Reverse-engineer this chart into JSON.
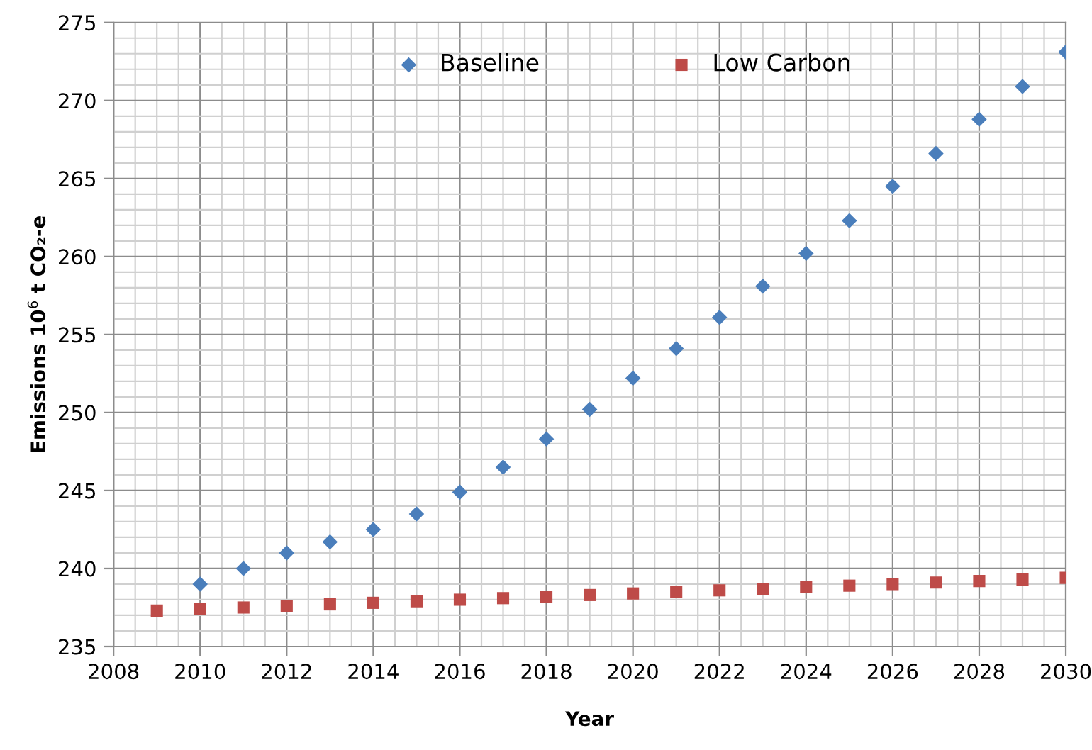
{
  "chart_data": {
    "type": "scatter",
    "xlabel": "Year",
    "ylabel": "Emissions 10$^{6}$ t CO₂-e",
    "xlim": [
      2008,
      2030
    ],
    "xticks": [
      2008,
      2010,
      2012,
      2014,
      2016,
      2018,
      2020,
      2022,
      2024,
      2026,
      2028,
      2030
    ],
    "ylim": [
      235,
      275
    ],
    "yticks": [
      235,
      240,
      245,
      250,
      255,
      260,
      265,
      270,
      275
    ],
    "grid": true,
    "legend": "top",
    "series": [
      {
        "name": "Baseline",
        "color": "#4a7ebb",
        "marker": "diamond",
        "x": [
          2010,
          2011,
          2012,
          2013,
          2014,
          2015,
          2016,
          2017,
          2018,
          2019,
          2020,
          2021,
          2022,
          2023,
          2024,
          2025,
          2026,
          2027,
          2028,
          2029,
          2030
        ],
        "values": [
          239.0,
          240.0,
          241.0,
          241.7,
          242.5,
          243.5,
          244.9,
          246.5,
          248.3,
          250.2,
          252.2,
          254.1,
          256.1,
          258.1,
          260.2,
          262.3,
          264.5,
          266.6,
          268.8,
          270.9,
          273.1
        ]
      },
      {
        "name": "Low Carbon",
        "color": "#be4b48",
        "marker": "square",
        "x": [
          2009,
          2010,
          2011,
          2012,
          2013,
          2014,
          2015,
          2016,
          2017,
          2018,
          2019,
          2020,
          2021,
          2022,
          2023,
          2024,
          2025,
          2026,
          2027,
          2028,
          2029,
          2030
        ],
        "values": [
          237.3,
          237.4,
          237.5,
          237.6,
          237.7,
          237.8,
          237.9,
          238.0,
          238.1,
          238.2,
          238.3,
          238.4,
          238.5,
          238.6,
          238.7,
          238.8,
          238.9,
          239.0,
          239.1,
          239.2,
          239.3,
          239.4
        ]
      }
    ]
  }
}
